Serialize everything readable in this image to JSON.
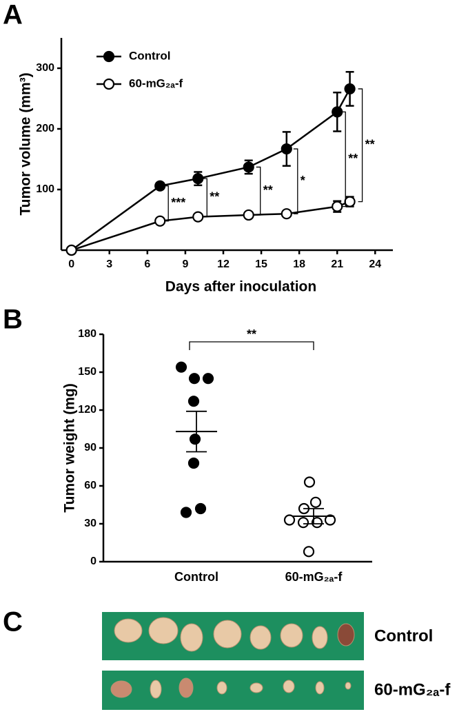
{
  "chart_data": [
    {
      "type": "line",
      "panel_label": "A",
      "x_label": "Days after inoculation",
      "y_label": "Tumor volume (mm³)",
      "x": [
        0,
        7,
        10,
        14,
        17,
        21,
        22
      ],
      "series": [
        {
          "name": "Control",
          "color": "#000000",
          "marker_face": "#000000",
          "values": [
            0,
            106,
            118,
            137,
            167,
            228,
            266
          ],
          "errors": [
            0,
            5,
            11,
            11,
            28,
            32,
            28
          ]
        },
        {
          "name": "60-mG₂ₐ-f",
          "color": "#000000",
          "marker_face": "#ffffff",
          "values": [
            0,
            48,
            55,
            58,
            60,
            72,
            80
          ],
          "errors": [
            0,
            2,
            2,
            2,
            3,
            9,
            8
          ]
        }
      ],
      "significance": [
        "***",
        "**",
        "**",
        "*",
        "**",
        "**"
      ],
      "xlim": [
        -0.8,
        25.4
      ],
      "ylim": [
        0,
        350
      ],
      "xticks": [
        0,
        3,
        6,
        9,
        12,
        15,
        18,
        21,
        24
      ],
      "yticks": [
        100,
        200,
        300
      ],
      "legend": "top-left",
      "grid": false
    },
    {
      "type": "strip",
      "panel_label": "B",
      "y_label": "Tumor weight (mg)",
      "categories": [
        "Control",
        "60-mG₂ₐ-f"
      ],
      "groups": [
        {
          "color": "#000000",
          "marker_face": "#000000",
          "values": [
            154,
            145,
            145,
            127,
            97,
            78,
            42,
            39
          ],
          "mean": 103,
          "sem": 16
        },
        {
          "color": "#000000",
          "marker_face": "#ffffff",
          "values": [
            63,
            47,
            42,
            33,
            33,
            31,
            31,
            8
          ],
          "mean": 36,
          "sem": 6
        }
      ],
      "significance": "**",
      "ylim": [
        0,
        180
      ],
      "yticks": [
        0,
        30,
        60,
        90,
        120,
        150,
        180
      ],
      "grid": false
    }
  ],
  "panel_c": {
    "panel_label": "C",
    "row_labels": [
      "Control",
      "60-mG₂ₐ-f"
    ]
  }
}
